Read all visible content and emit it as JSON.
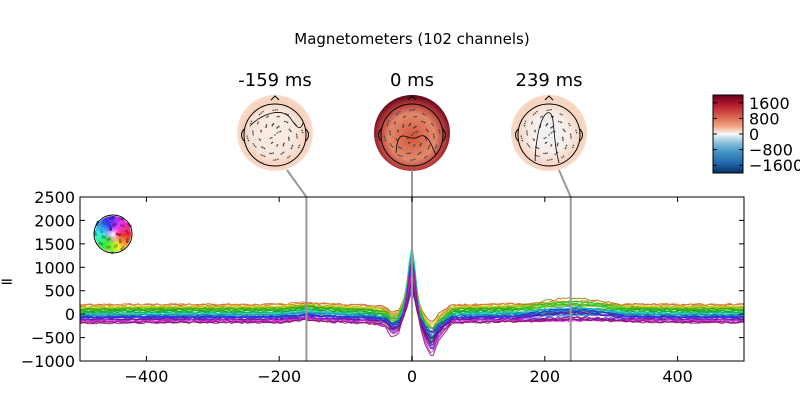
{
  "chart_data": {
    "type": "line",
    "title": "Magnetometers (102 channels)",
    "xlim": [
      -500,
      500
    ],
    "ylim": [
      -1000,
      2500
    ],
    "xticks": [
      -400,
      -200,
      0,
      200,
      400
    ],
    "yticks": [
      -1000,
      -500,
      0,
      500,
      1000,
      1500,
      2000,
      2500
    ],
    "xtick_labels": [
      "−400",
      "−200",
      "0",
      "200",
      "400"
    ],
    "ytick_labels": [
      "−1000",
      "−500",
      "0",
      "500",
      "1000",
      "1500",
      "2000",
      "2500"
    ],
    "ylabel_fragment": "=",
    "grid": false,
    "n_channels": 102,
    "mean_trace": {
      "x": [
        -500,
        -400,
        -300,
        -200,
        -170,
        -159,
        -140,
        -100,
        -60,
        -40,
        -30,
        -20,
        -10,
        -5,
        0,
        5,
        10,
        20,
        30,
        40,
        60,
        80,
        120,
        160,
        200,
        239,
        280,
        320,
        360,
        400,
        450,
        500
      ],
      "y": [
        30,
        40,
        40,
        40,
        80,
        110,
        70,
        40,
        20,
        -50,
        -260,
        -160,
        300,
        900,
        1300,
        800,
        100,
        -400,
        -680,
        -320,
        20,
        40,
        50,
        60,
        90,
        120,
        100,
        60,
        50,
        40,
        40,
        40
      ]
    },
    "highlighted_times": [
      {
        "time": -159,
        "label": "-159 ms",
        "topomap_tint": "#fad7c4"
      },
      {
        "time": 0,
        "label": "0 ms",
        "topomap_tint": "#d15a45"
      },
      {
        "time": 239,
        "label": "239 ms",
        "topomap_tint": "#f7d2be"
      }
    ],
    "colorbar": {
      "ticks": [
        1600,
        800,
        0,
        -800,
        -1600
      ],
      "tick_labels": [
        "1600",
        "800",
        "0",
        "−800",
        "−1600"
      ],
      "colormap": "RdBu_r"
    },
    "sensor_legend_colors": "rainbow"
  }
}
